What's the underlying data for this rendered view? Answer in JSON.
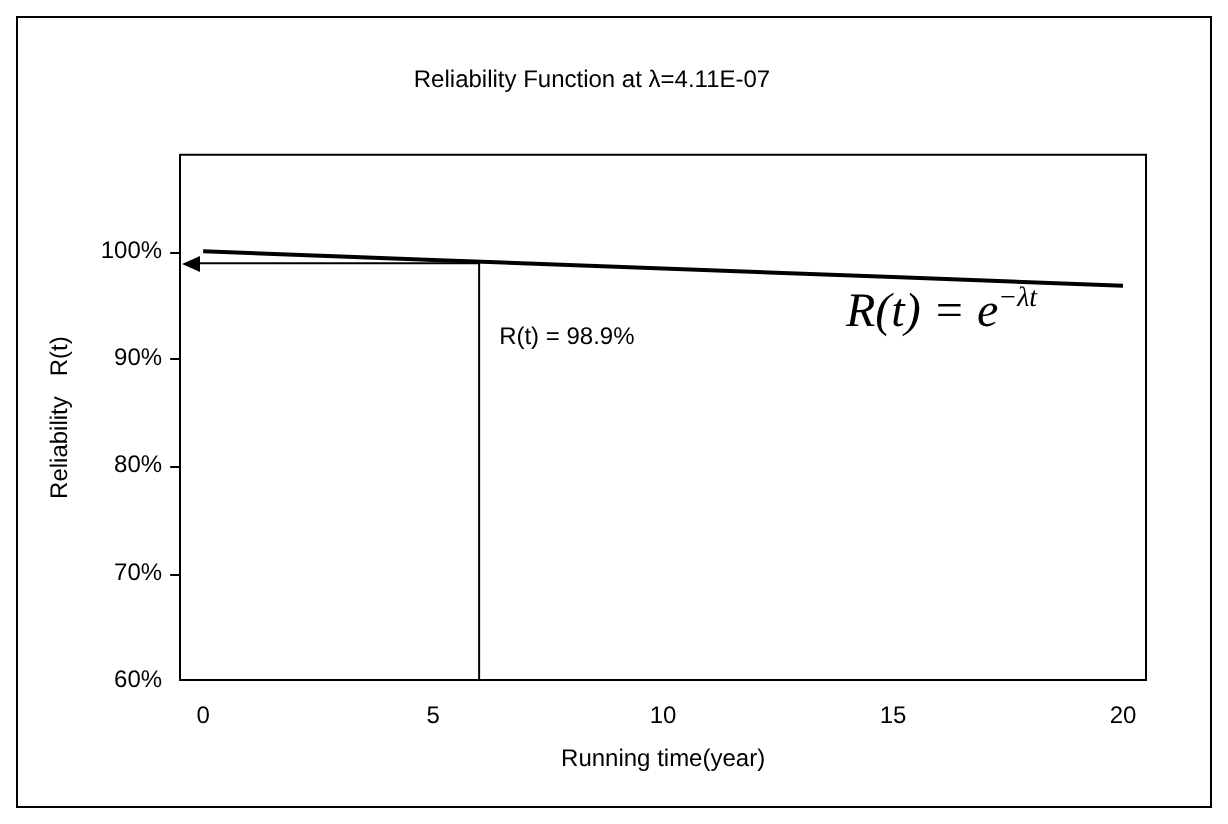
{
  "chart_data": {
    "type": "line",
    "title": "Reliability Function at λ=4.11E-07",
    "xlabel": "Running time(year)",
    "ylabel": "Reliability   R(t)",
    "x": [
      0,
      5,
      10,
      15,
      20
    ],
    "series": [
      {
        "color": "#000000",
        "values": [
          100,
          99.2,
          98.4,
          97.6,
          96.8
        ]
      }
    ],
    "xlim": [
      -0.5,
      20.5
    ],
    "xticks": [
      0,
      5,
      10,
      15,
      20
    ],
    "ylim": [
      60,
      109
    ],
    "yticks": [
      {
        "value": 60,
        "label": "60%"
      },
      {
        "value": 70,
        "label": "70%"
      },
      {
        "value": 80,
        "label": "80%"
      },
      {
        "value": 90,
        "label": "90%"
      },
      {
        "value": 100,
        "label": "100%"
      }
    ],
    "ref_lines": [
      {
        "axis": "x",
        "value": 6,
        "color": "#000000"
      },
      {
        "axis": "y",
        "value": 98.9,
        "label": "R(t) = 98.9%",
        "color": "#000000"
      }
    ],
    "annotations": [
      "R(t) = e$^{−λt}$"
    ],
    "grid": false,
    "legend": false,
    "marker": "none",
    "line_style": "solid"
  }
}
